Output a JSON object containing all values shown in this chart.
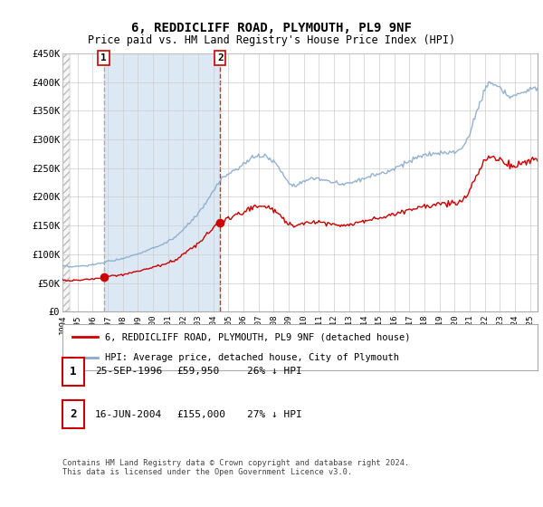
{
  "title": "6, REDDICLIFF ROAD, PLYMOUTH, PL9 9NF",
  "subtitle": "Price paid vs. HM Land Registry's House Price Index (HPI)",
  "ylim": [
    0,
    450000
  ],
  "yticks": [
    0,
    50000,
    100000,
    150000,
    200000,
    250000,
    300000,
    350000,
    400000,
    450000
  ],
  "ytick_labels": [
    "£0",
    "£50K",
    "£100K",
    "£150K",
    "£200K",
    "£250K",
    "£300K",
    "£350K",
    "£400K",
    "£450K"
  ],
  "sale1_year": 1996.73,
  "sale1_price": 59950,
  "sale2_year": 2004.46,
  "sale2_price": 155000,
  "legend_property": "6, REDDICLIFF ROAD, PLYMOUTH, PL9 9NF (detached house)",
  "legend_hpi": "HPI: Average price, detached house, City of Plymouth",
  "footer": "Contains HM Land Registry data © Crown copyright and database right 2024.\nThis data is licensed under the Open Government Licence v3.0.",
  "property_color": "#cc0000",
  "hpi_color": "#88aacc",
  "grid_color": "#cccccc",
  "background_color": "#ffffff",
  "xmin": 1994.0,
  "xmax": 2025.5,
  "xticks": [
    1994,
    1995,
    1996,
    1997,
    1998,
    1999,
    2000,
    2001,
    2002,
    2003,
    2004,
    2005,
    2006,
    2007,
    2008,
    2009,
    2010,
    2011,
    2012,
    2013,
    2014,
    2015,
    2016,
    2017,
    2018,
    2019,
    2020,
    2021,
    2022,
    2023,
    2024,
    2025
  ]
}
